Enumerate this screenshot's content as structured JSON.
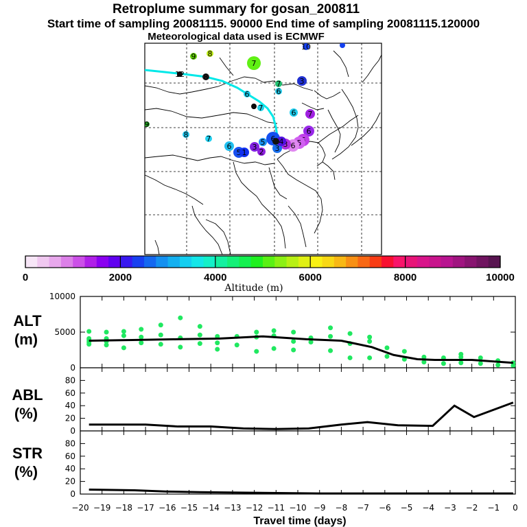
{
  "header": {
    "title": "Retroplume summary for gosan_200811",
    "line2": "Start time of sampling 20081115. 90000     End time of sampling 20081115.120000",
    "line3": "Meteorological data used is ECMWF"
  },
  "colorbar": {
    "label": "Altitude (m)",
    "ticks": [
      "0",
      "2000",
      "4000",
      "6000",
      "8000",
      "10000"
    ],
    "tick_values": [
      0,
      2000,
      4000,
      6000,
      8000,
      10000
    ],
    "colors": [
      "#f7e6f7",
      "#f0c8f0",
      "#e8a8ec",
      "#dc80e8",
      "#cc50e8",
      "#b020e8",
      "#8a00f0",
      "#6000f0",
      "#3818f0",
      "#1840f0",
      "#1468f0",
      "#1490f0",
      "#14b0f0",
      "#14cef0",
      "#14e6e8",
      "#14f0c8",
      "#14f0a0",
      "#14f078",
      "#14f050",
      "#20f020",
      "#5af014",
      "#8cf014",
      "#b8f014",
      "#e0f014",
      "#f8f014",
      "#f8d814",
      "#f8b814",
      "#f89014",
      "#f86814",
      "#f83c14",
      "#f81030",
      "#f8146a",
      "#e81478",
      "#d8148a",
      "#c8148c",
      "#b81490",
      "#a01480",
      "#881470",
      "#701460",
      "#581450"
    ]
  },
  "map": {
    "trajectory_color": "#00e8e8",
    "markers": [
      {
        "label": "10",
        "color": "#1440f0"
      },
      {
        "label": "9",
        "color": "#60d000"
      },
      {
        "label": "8",
        "color": "#c0f014"
      },
      {
        "label": "7",
        "color": "#60f014"
      },
      {
        "label": "12",
        "color": "#0c0c0c"
      },
      {
        "label": "8",
        "color": "#1f1f1f"
      },
      {
        "label": "3",
        "color": "#2030d0"
      },
      {
        "label": "7",
        "color": "#20c070"
      },
      {
        "label": "6",
        "color": "#20c8e8"
      },
      {
        "label": "6",
        "color": "#18d0f0"
      },
      {
        "label": "8",
        "color": "#0f0f0f"
      },
      {
        "label": "7",
        "color": "#20d0e8"
      },
      {
        "label": "6",
        "color": "#20d0f0"
      },
      {
        "label": "7",
        "color": "#a020e0"
      },
      {
        "label": "9",
        "color": "#20a020"
      },
      {
        "label": "8",
        "color": "#20c8f0"
      },
      {
        "label": "7",
        "color": "#20d0f0"
      },
      {
        "label": "6",
        "color": "#20c0f0"
      },
      {
        "label": "5",
        "color": "#1850f0"
      },
      {
        "label": "1",
        "color": "#1030f0"
      },
      {
        "label": "3",
        "color": "#8020e0"
      },
      {
        "label": "2",
        "color": "#9020e0"
      },
      {
        "label": "5",
        "color": "#1890f0"
      },
      {
        "label": "6",
        "color": "#1450f0"
      },
      {
        "label": "6",
        "color": "#9828e8"
      },
      {
        "label": "6",
        "color": "#c040e8"
      },
      {
        "label": "5",
        "color": "#d060f0"
      },
      {
        "label": "6",
        "color": "#e088f0"
      },
      {
        "label": "3",
        "color": "#b030e0"
      },
      {
        "label": "3",
        "color": "#1870f0"
      },
      {
        "label": "4",
        "color": "#5010e0"
      }
    ]
  },
  "chart_data": [
    {
      "type": "scatter",
      "panel": "ALT",
      "ylabel_line1": "ALT",
      "ylabel_line2": "(m)",
      "ylim": [
        0,
        10000
      ],
      "yticks": [
        "10000",
        "5000",
        "0"
      ],
      "ytick_values": [
        10000,
        5000,
        0
      ],
      "xlim": [
        -20,
        0
      ],
      "point_color": "#20e860",
      "points": [
        [
          -19.6,
          3300
        ],
        [
          -19.6,
          3600
        ],
        [
          -19.6,
          4100
        ],
        [
          -19.6,
          5100
        ],
        [
          -19.6,
          3900
        ],
        [
          -18.8,
          3200
        ],
        [
          -18.8,
          4100
        ],
        [
          -18.8,
          5000
        ],
        [
          -18.8,
          3700
        ],
        [
          -18,
          2800
        ],
        [
          -18,
          4500
        ],
        [
          -18,
          5100
        ],
        [
          -17.2,
          3500
        ],
        [
          -17.2,
          4300
        ],
        [
          -17.2,
          5400
        ],
        [
          -16.3,
          3300
        ],
        [
          -16.3,
          4600
        ],
        [
          -16.3,
          6000
        ],
        [
          -15.4,
          2900
        ],
        [
          -15.4,
          4200
        ],
        [
          -15.4,
          7000
        ],
        [
          -14.5,
          3400
        ],
        [
          -14.5,
          4600
        ],
        [
          -14.5,
          5800
        ],
        [
          -13.7,
          2600
        ],
        [
          -13.7,
          3500
        ],
        [
          -13.7,
          4400
        ],
        [
          -12.8,
          3200
        ],
        [
          -12.8,
          4400
        ],
        [
          -11.9,
          2300
        ],
        [
          -11.9,
          4300
        ],
        [
          -11.9,
          5000
        ],
        [
          -11.1,
          2700
        ],
        [
          -11.1,
          4500
        ],
        [
          -11.1,
          5200
        ],
        [
          -10.2,
          2500
        ],
        [
          -10.2,
          3700
        ],
        [
          -10.2,
          5000
        ],
        [
          -9.4,
          3600
        ],
        [
          -9.4,
          4200
        ],
        [
          -8.5,
          2400
        ],
        [
          -8.5,
          4400
        ],
        [
          -8.5,
          5600
        ],
        [
          -7.6,
          1400
        ],
        [
          -7.6,
          3400
        ],
        [
          -7.6,
          4800
        ],
        [
          -6.7,
          1400
        ],
        [
          -6.7,
          3700
        ],
        [
          -6.7,
          4300
        ],
        [
          -5.9,
          1600
        ],
        [
          -5.9,
          2800
        ],
        [
          -5.1,
          1200
        ],
        [
          -5.1,
          2300
        ],
        [
          -4.2,
          800
        ],
        [
          -4.2,
          1500
        ],
        [
          -3.3,
          600
        ],
        [
          -3.3,
          1400
        ],
        [
          -2.5,
          700
        ],
        [
          -2.5,
          1500
        ],
        [
          -2.5,
          1900
        ],
        [
          -1.6,
          600
        ],
        [
          -1.6,
          1400
        ],
        [
          -0.8,
          400
        ],
        [
          -0.8,
          1000
        ],
        [
          -0.1,
          300
        ],
        [
          -0.1,
          700
        ]
      ],
      "mean_line": {
        "x": [
          -19.6,
          -17.6,
          -15.6,
          -13.6,
          -11.6,
          -9.6,
          -8,
          -6.6,
          -5.6,
          -4.5,
          -3.7,
          -2,
          -0.1
        ],
        "y": [
          3800,
          3900,
          4000,
          4100,
          4400,
          4000,
          3800,
          2900,
          1800,
          1200,
          1100,
          1100,
          700
        ]
      },
      "xtick_values": [
        -20,
        -19,
        -18,
        -17,
        -16,
        -15,
        -14,
        -13,
        -12,
        -11,
        -10,
        -9,
        -8,
        -7,
        -6,
        -5,
        -4,
        -3,
        -2,
        -1,
        0
      ]
    },
    {
      "type": "line",
      "panel": "ABL",
      "ylabel_line1": "ABL",
      "ylabel_line2": "(%)",
      "ylim": [
        0,
        100
      ],
      "yticks": [
        "80",
        "60",
        "40",
        "20",
        "0"
      ],
      "ytick_values": [
        80,
        60,
        40,
        20,
        0
      ],
      "xlim": [
        -20,
        0
      ],
      "x": [
        -19.6,
        -17,
        -15.5,
        -14,
        -12.5,
        -11,
        -9.5,
        -8,
        -6.8,
        -5.4,
        -3.8,
        -2.8,
        -1.9,
        -0.1
      ],
      "y": [
        10,
        10,
        7,
        7,
        4,
        3,
        4,
        10,
        14,
        9,
        8,
        40,
        22,
        45
      ]
    },
    {
      "type": "line",
      "panel": "STR",
      "ylabel_line1": "STR",
      "ylabel_line2": "(%)",
      "ylim": [
        0,
        100
      ],
      "yticks": [
        "80",
        "60",
        "40",
        "20",
        "0"
      ],
      "ytick_values": [
        80,
        60,
        40,
        20,
        0
      ],
      "xlim": [
        -20,
        0
      ],
      "x": [
        -19.6,
        -17.5,
        -16,
        -14.5,
        -12,
        -9,
        -6,
        -3,
        -0.1
      ],
      "y": [
        7,
        6,
        4,
        3,
        2,
        1,
        1,
        1,
        1
      ],
      "xlabel": "Travel time (days)",
      "xticks": [
        "−20",
        "−19",
        "−18",
        "−17",
        "−16",
        "−15",
        "−14",
        "−13",
        "−12",
        "−11",
        "−10",
        "−9",
        "−8",
        "−7",
        "−6",
        "−5",
        "−4",
        "−3",
        "−2",
        "−1",
        "0"
      ],
      "xtick_values": [
        -20,
        -19,
        -18,
        -17,
        -16,
        -15,
        -14,
        -13,
        -12,
        -11,
        -10,
        -9,
        -8,
        -7,
        -6,
        -5,
        -4,
        -3,
        -2,
        -1,
        0
      ]
    }
  ]
}
